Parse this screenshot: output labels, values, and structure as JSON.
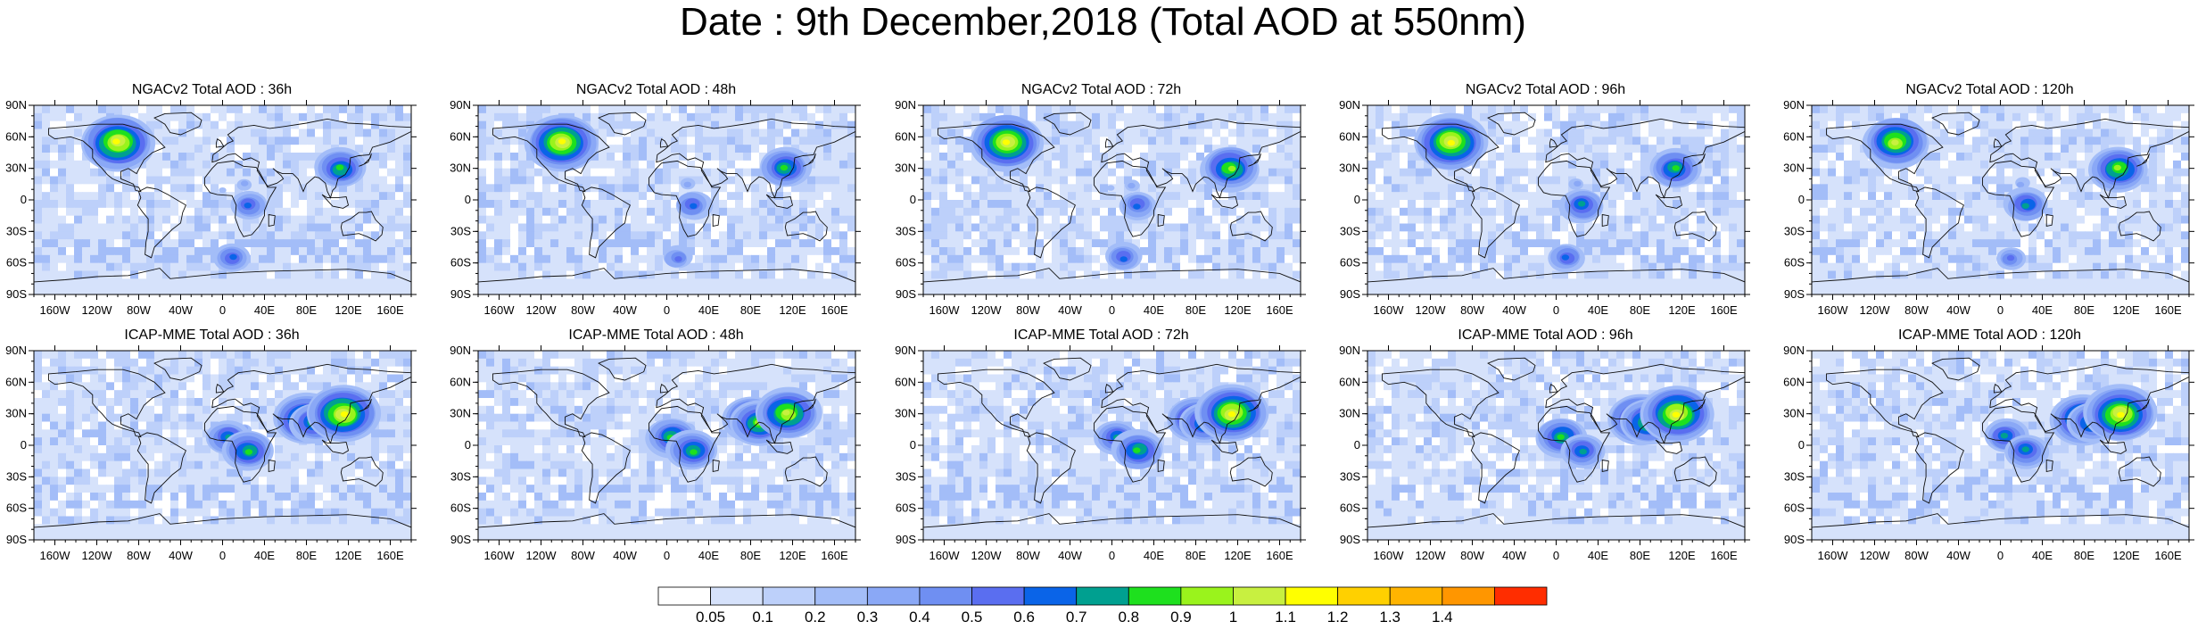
{
  "title": "Date : 9th December,2018 (Total AOD at 550nm)",
  "chart_data": [
    {
      "type": "heatmap",
      "title": "NGACv2 Total AOD : 36h",
      "lead": "36h"
    },
    {
      "type": "heatmap",
      "title": "NGACv2 Total AOD : 48h",
      "lead": "48h"
    },
    {
      "type": "heatmap",
      "title": "NGACv2 Total AOD : 72h",
      "lead": "72h"
    },
    {
      "type": "heatmap",
      "title": "NGACv2 Total AOD : 96h",
      "lead": "96h"
    },
    {
      "type": "heatmap",
      "title": "NGACv2 Total AOD : 120h",
      "lead": "120h"
    },
    {
      "type": "heatmap",
      "title": "ICAP-MME Total AOD : 36h",
      "lead": "36h"
    },
    {
      "type": "heatmap",
      "title": "ICAP-MME Total AOD : 48h",
      "lead": "48h"
    },
    {
      "type": "heatmap",
      "title": "ICAP-MME Total AOD : 72h",
      "lead": "72h"
    },
    {
      "type": "heatmap",
      "title": "ICAP-MME Total AOD : 96h",
      "lead": "96h"
    },
    {
      "type": "heatmap",
      "title": "ICAP-MME Total AOD : 120h",
      "lead": "120h"
    }
  ],
  "axes": {
    "lat_ticks": [
      "90N",
      "60N",
      "30N",
      "0",
      "30S",
      "60S",
      "90S"
    ],
    "lon_ticks": [
      "160W",
      "120W",
      "80W",
      "40W",
      "0",
      "40E",
      "80E",
      "120E",
      "160E"
    ],
    "lat_range": [
      -90,
      90
    ],
    "lon_range": [
      -180,
      180
    ]
  },
  "colorbar": {
    "labels": [
      "0.05",
      "0.1",
      "0.2",
      "0.3",
      "0.4",
      "0.5",
      "0.6",
      "0.7",
      "0.8",
      "0.9",
      "1",
      "1.1",
      "1.2",
      "1.3",
      "1.4"
    ],
    "colors": [
      "#ffffff",
      "#d6e2fb",
      "#bdd0fa",
      "#a3bdf8",
      "#8aa8f6",
      "#6f8ff2",
      "#5a6ef0",
      "#0a64e8",
      "#00a090",
      "#1ee01e",
      "#9af31c",
      "#c8f040",
      "#ffff00",
      "#ffd000",
      "#ffb400",
      "#ff9600",
      "#ff2d00"
    ]
  },
  "hotspots": {
    "shared": [
      {
        "lon": 20,
        "lat": 15,
        "level": 4
      },
      {
        "lon": 0,
        "lat": 10,
        "level": 3
      },
      {
        "lon": 25,
        "lat": 0,
        "level": 4
      },
      {
        "lon": 110,
        "lat": 30,
        "level": 5
      },
      {
        "lon": 115,
        "lat": 35,
        "level": 5
      }
    ],
    "NGACv2": [
      {
        "lon": 25,
        "lat": -5,
        "level": 8
      },
      {
        "lon": 113,
        "lat": 30,
        "level": 10
      },
      {
        "lon": 10,
        "lat": -55,
        "level": 7
      },
      {
        "lon": -100,
        "lat": 55,
        "level": 12
      }
    ],
    "ICAP-MME": [
      {
        "lon": 80,
        "lat": 25,
        "level": 11
      },
      {
        "lon": 88,
        "lat": 22,
        "level": 10
      },
      {
        "lon": 115,
        "lat": 30,
        "level": 12
      },
      {
        "lon": 5,
        "lat": 8,
        "level": 9
      },
      {
        "lon": 25,
        "lat": -5,
        "level": 9
      }
    ]
  }
}
